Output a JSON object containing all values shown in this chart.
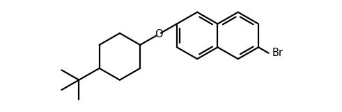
{
  "background_color": "#ffffff",
  "line_color": "#000000",
  "line_width": 1.6,
  "figsize": [
    4.91,
    1.62
  ],
  "dpi": 100,
  "label_fontsize": 10.5,
  "O_label": "O",
  "Br_label": "Br"
}
